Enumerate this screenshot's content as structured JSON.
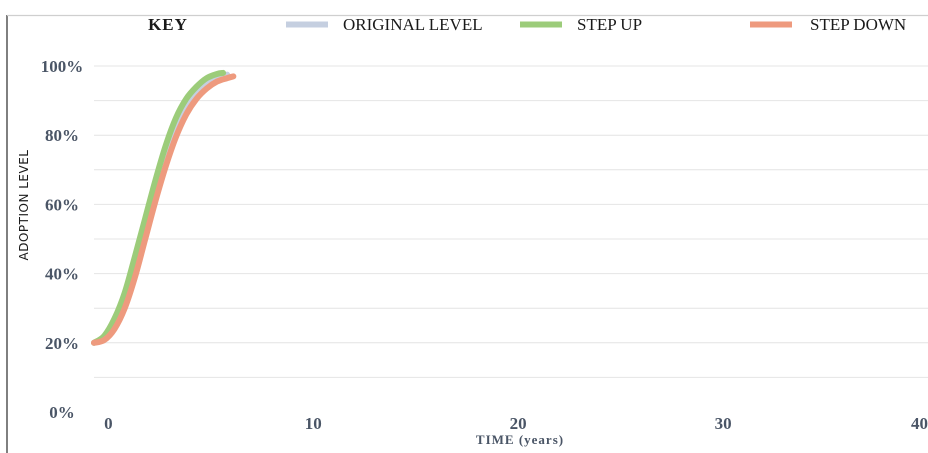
{
  "chart_data": {
    "type": "line",
    "legend_title": "KEY",
    "legend_position": "top",
    "xlabel": "TIME (years)",
    "ylabel": "ADOPTION  LEVEL",
    "xlim": [
      -0.7,
      40
    ],
    "ylim": [
      0,
      100
    ],
    "x_ticks": [
      0,
      10,
      20,
      30,
      40
    ],
    "x_tick_labels": [
      "0",
      "10",
      "20",
      "30",
      "40"
    ],
    "y_ticks": [
      0,
      20,
      40,
      60,
      80,
      100
    ],
    "y_tick_labels": [
      "0%",
      "20%",
      "40%",
      "60%",
      "80%",
      "100%"
    ],
    "grid": true,
    "series": [
      {
        "name": "ORIGINAL LEVEL",
        "color": "#c5cfe0",
        "x": [
          -0.7,
          -0.2,
          0.3,
          0.8,
          1.3,
          1.8,
          2.3,
          2.8,
          3.3,
          3.8,
          4.3,
          4.8,
          5.3,
          5.8
        ],
        "y": [
          20,
          21.5,
          26,
          33,
          43,
          54,
          65,
          75,
          83,
          89,
          93,
          95.5,
          97,
          97.5
        ]
      },
      {
        "name": "STEP UP",
        "color": "#9ccc7a",
        "x": [
          -0.7,
          -0.2,
          0.3,
          0.8,
          1.3,
          1.8,
          2.3,
          2.8,
          3.3,
          3.8,
          4.3,
          4.8,
          5.3,
          5.6
        ],
        "y": [
          20,
          22,
          27,
          34.5,
          45,
          56,
          67,
          77,
          85,
          90.5,
          94,
          96.5,
          97.7,
          98
        ]
      },
      {
        "name": "STEP DOWN",
        "color": "#ee9a7e",
        "x": [
          -0.7,
          -0.2,
          0.3,
          0.8,
          1.3,
          1.8,
          2.3,
          2.8,
          3.3,
          3.8,
          4.3,
          4.8,
          5.3,
          5.8,
          6.1
        ],
        "y": [
          20,
          20.8,
          24,
          30,
          39,
          50,
          61,
          71,
          79.5,
          86,
          90.5,
          93.5,
          95.5,
          96.5,
          97
        ]
      }
    ]
  }
}
